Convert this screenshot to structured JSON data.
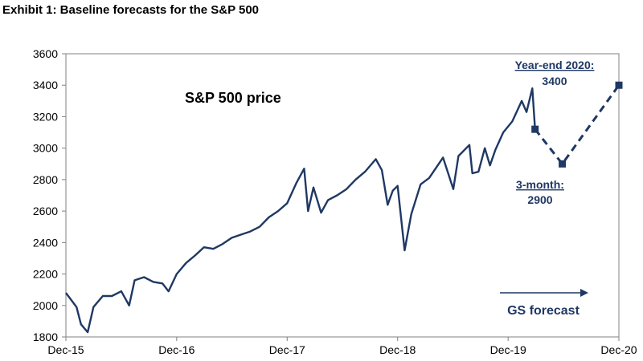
{
  "header": {
    "title": "Exhibit 1: Baseline forecasts for the S&P 500"
  },
  "colors": {
    "series": "#1f3864",
    "axis": "#808080"
  },
  "chart_data": {
    "type": "line",
    "title": "S&P 500 price",
    "xlabel": "",
    "ylabel": "",
    "ylim": [
      1800,
      3600
    ],
    "yticks": [
      1800,
      2000,
      2200,
      2400,
      2600,
      2800,
      3000,
      3200,
      3400,
      3600
    ],
    "xlim": [
      "2015-12-01",
      "2020-12-01"
    ],
    "xtick_labels": [
      "Dec-15",
      "Dec-16",
      "Dec-17",
      "Dec-18",
      "Dec-19",
      "Dec-20"
    ],
    "xtick_dates": [
      "2015-12-01",
      "2016-12-01",
      "2017-12-01",
      "2018-12-01",
      "2019-12-01",
      "2020-12-01"
    ],
    "grid": false,
    "series": [
      {
        "name": "S&P 500 price",
        "style": "solid",
        "x": [
          "2015-12-01",
          "2016-01-05",
          "2016-01-20",
          "2016-02-11",
          "2016-03-01",
          "2016-04-01",
          "2016-05-01",
          "2016-06-01",
          "2016-06-27",
          "2016-07-15",
          "2016-08-15",
          "2016-09-15",
          "2016-10-15",
          "2016-11-04",
          "2016-12-01",
          "2017-01-01",
          "2017-02-01",
          "2017-03-01",
          "2017-04-01",
          "2017-05-01",
          "2017-06-01",
          "2017-07-01",
          "2017-08-01",
          "2017-09-01",
          "2017-10-01",
          "2017-11-01",
          "2017-12-01",
          "2018-01-01",
          "2018-01-26",
          "2018-02-08",
          "2018-02-26",
          "2018-03-23",
          "2018-04-15",
          "2018-05-15",
          "2018-06-15",
          "2018-07-15",
          "2018-08-15",
          "2018-09-20",
          "2018-10-10",
          "2018-10-29",
          "2018-11-15",
          "2018-12-01",
          "2018-12-24",
          "2019-01-15",
          "2019-02-15",
          "2019-03-15",
          "2019-04-30",
          "2019-06-03",
          "2019-06-20",
          "2019-07-26",
          "2019-08-05",
          "2019-08-25",
          "2019-09-15",
          "2019-10-02",
          "2019-10-20",
          "2019-11-15",
          "2019-12-15",
          "2020-01-15",
          "2020-01-31",
          "2020-02-19",
          "2020-02-28"
        ],
        "y": [
          2080,
          1990,
          1880,
          1830,
          1990,
          2060,
          2060,
          2090,
          2000,
          2160,
          2180,
          2150,
          2140,
          2090,
          2200,
          2270,
          2320,
          2370,
          2360,
          2390,
          2430,
          2450,
          2470,
          2500,
          2560,
          2600,
          2650,
          2780,
          2870,
          2600,
          2750,
          2590,
          2670,
          2700,
          2740,
          2800,
          2850,
          2930,
          2860,
          2640,
          2730,
          2760,
          2350,
          2580,
          2770,
          2810,
          2940,
          2740,
          2950,
          3020,
          2840,
          2850,
          3000,
          2890,
          2990,
          3100,
          3170,
          3300,
          3230,
          3380,
          3120
        ]
      },
      {
        "name": "GS forecast",
        "style": "dashed",
        "x": [
          "2020-02-28",
          "2020-05-28",
          "2020-12-01"
        ],
        "y": [
          3120,
          2900,
          3400
        ]
      }
    ],
    "annotations": {
      "year_end_label": "Year-end 2020:",
      "year_end_value": "3400",
      "three_month_label": "3-month:",
      "three_month_value": "2900",
      "arrow_label": "GS forecast"
    }
  }
}
